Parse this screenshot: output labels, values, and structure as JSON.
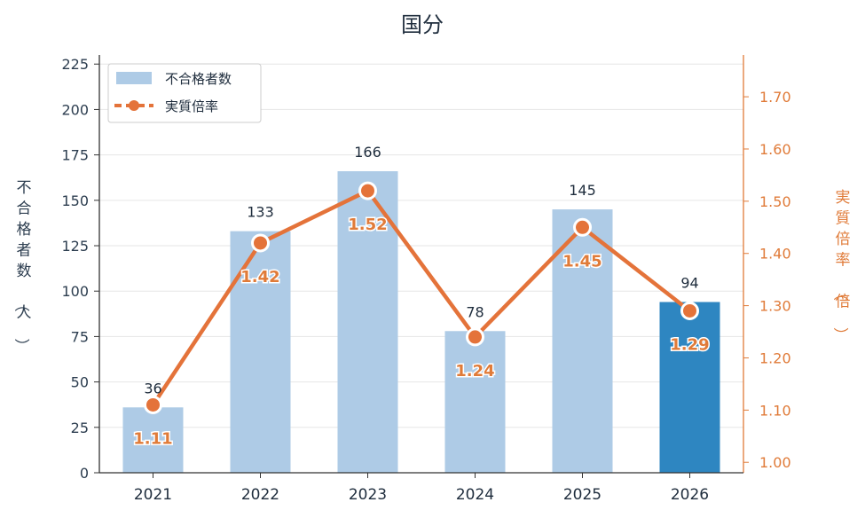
{
  "chart_data": {
    "type": "bar",
    "title": "国分",
    "categories": [
      "2021",
      "2022",
      "2023",
      "2024",
      "2025",
      "2026"
    ],
    "series": [
      {
        "name": "不合格者数",
        "type": "bar",
        "axis": "left",
        "values": [
          36,
          133,
          166,
          78,
          145,
          94
        ],
        "color": "#aecbe6",
        "highlight_color": "#2e86c1",
        "highlight_index": 5
      },
      {
        "name": "実質倍率",
        "type": "line",
        "axis": "right",
        "values": [
          1.11,
          1.42,
          1.52,
          1.24,
          1.45,
          1.29
        ],
        "labels": [
          "1.11",
          "1.42",
          "1.52",
          "1.24",
          "1.45",
          "1.29"
        ],
        "color": "#e4733a"
      }
    ],
    "ylabel": "不合格者数（人）",
    "ylabel_right": "実質倍率（倍）",
    "ylim": [
      0,
      230
    ],
    "yticks": [
      0,
      25,
      50,
      75,
      100,
      125,
      150,
      175,
      200,
      225
    ],
    "ylim_right": [
      0.98,
      1.78
    ],
    "yticks_right": [
      "1.00",
      "1.10",
      "1.20",
      "1.30",
      "1.40",
      "1.50",
      "1.60",
      "1.70"
    ],
    "grid": true,
    "legend_position": "top-left"
  }
}
